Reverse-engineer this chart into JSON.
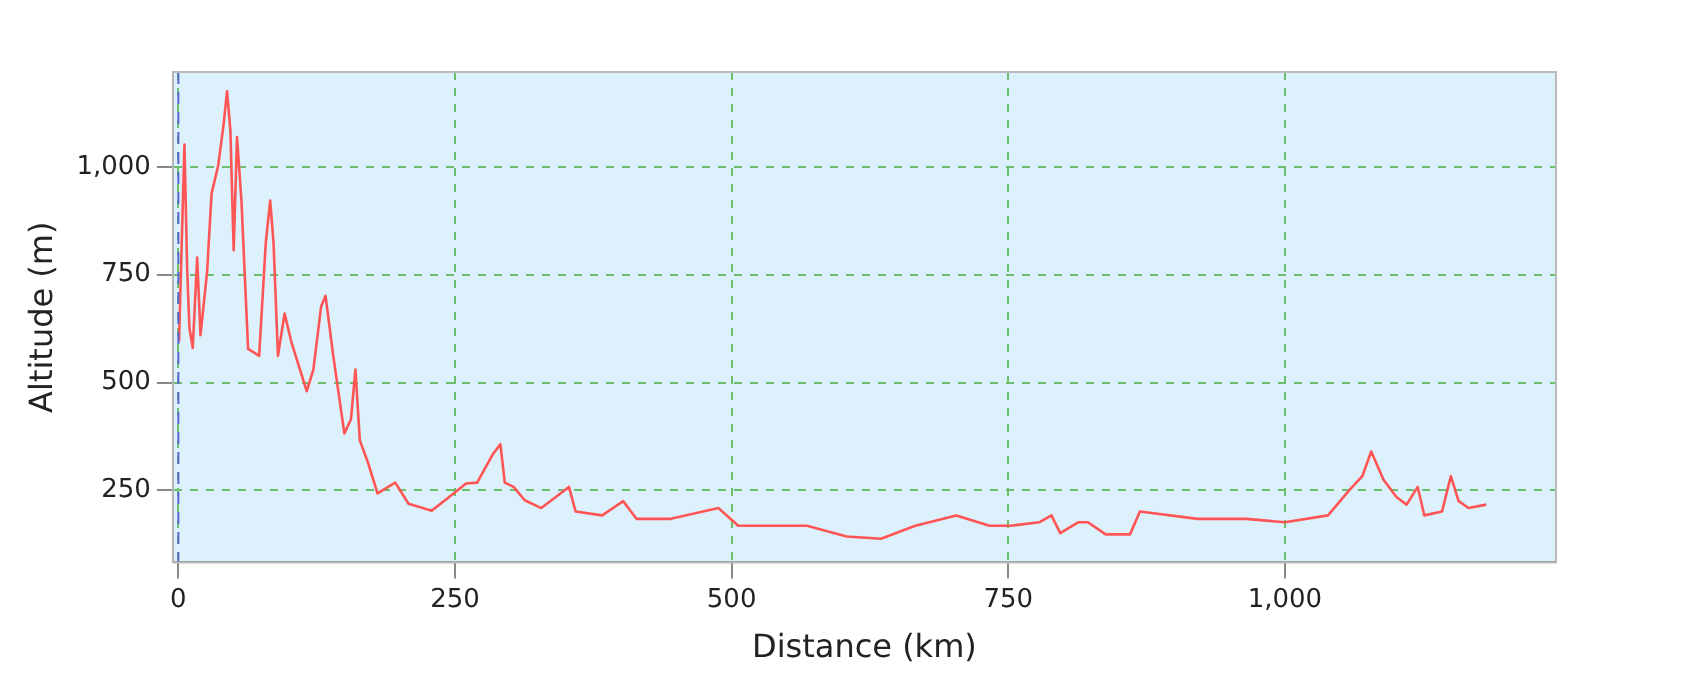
{
  "chart_data": {
    "type": "line",
    "xlabel": "Distance (km)",
    "ylabel": "Altitude (m)",
    "x": [
      0.6,
      5.5,
      8,
      10,
      13,
      17,
      20,
      26,
      30,
      36,
      41,
      44,
      47,
      50,
      53,
      57,
      63,
      73,
      79,
      83,
      86,
      90,
      96,
      102,
      116,
      122,
      129,
      133,
      140,
      150,
      156,
      160,
      164,
      171,
      180,
      196,
      208,
      229,
      245,
      260,
      270,
      284,
      291,
      295,
      303,
      313,
      328,
      353,
      359,
      383,
      402,
      414,
      445,
      488,
      506,
      568,
      604,
      635,
      666,
      703,
      733,
      752,
      778,
      789,
      797,
      813,
      822,
      838,
      860,
      869,
      921,
      965,
      1000,
      1039,
      1058,
      1070,
      1078,
      1089,
      1101,
      1110,
      1120,
      1126,
      1142,
      1150,
      1157,
      1166,
      1182
    ],
    "series": [
      {
        "color": "#ff5555",
        "values": [
          595,
          1052,
          758,
          627,
          580,
          790,
          610,
          758,
          938,
          1003,
          1101,
          1175,
          1085,
          807,
          1069,
          922,
          578,
          562,
          824,
          922,
          824,
          562,
          660,
          595,
          480,
          530,
          676,
          701,
          562,
          382,
          415,
          530,
          366,
          317,
          243,
          268,
          219,
          203,
          235,
          266,
          268,
          333,
          357,
          268,
          258,
          227,
          209,
          258,
          201,
          192,
          225,
          184,
          184,
          209,
          168,
          168,
          143,
          138,
          168,
          192,
          168,
          168,
          176,
          192,
          151,
          176,
          176,
          148,
          148,
          201,
          184,
          184,
          176,
          192,
          250,
          283,
          340,
          275,
          234,
          217,
          258,
          192,
          201,
          283,
          225,
          209,
          217
        ]
      }
    ],
    "xlim": [
      -5,
      1245
    ],
    "ylim": [
      83,
      1220
    ],
    "xticks": [
      {
        "value": 0,
        "label": "0"
      },
      {
        "value": 250,
        "label": "250"
      },
      {
        "value": 500,
        "label": "500"
      },
      {
        "value": 750,
        "label": "750"
      },
      {
        "value": 1000,
        "label": "1,000"
      }
    ],
    "yticks": [
      {
        "value": 250,
        "label": "250"
      },
      {
        "value": 500,
        "label": "500"
      },
      {
        "value": 750,
        "label": "750"
      },
      {
        "value": 1000,
        "label": "1,000"
      }
    ],
    "grid": true,
    "marker": "none",
    "line_style": "solid",
    "ref_lines": [
      {
        "axis": "x",
        "value": 0,
        "color": "#5566cc",
        "line_style": "dashed"
      }
    ]
  }
}
